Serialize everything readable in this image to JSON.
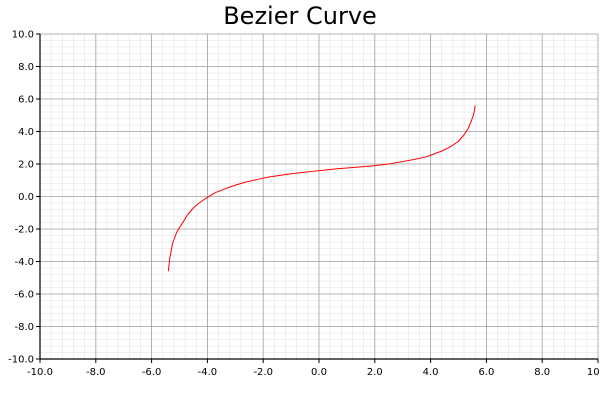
{
  "chart_data": {
    "type": "line",
    "title": "Bezier Curve",
    "xlabel": "",
    "ylabel": "",
    "xlim": [
      -10,
      10
    ],
    "ylim": [
      -10,
      10
    ],
    "xticks": [
      -10,
      -8,
      -6,
      -4,
      -2,
      0,
      2,
      4,
      6,
      8,
      10
    ],
    "yticks": [
      -10,
      -8,
      -6,
      -4,
      -2,
      0,
      2,
      4,
      6,
      8,
      10
    ],
    "tick_format_decimals": 1,
    "grid": {
      "major": true,
      "minor": true,
      "minor_step": 0.4
    },
    "colors": {
      "line": "#ff0000",
      "major_grid": "#a0a0a0",
      "minor_grid": "#e2e2e2",
      "axis": "#000000"
    },
    "series": [
      {
        "x": [
          -5.4,
          -5.35,
          -5.25,
          -5.1,
          -4.9,
          -4.7,
          -4.5,
          -4.3,
          -4.0,
          -3.7,
          -3.4,
          -3.0,
          -2.6,
          -2.2,
          -1.8,
          -1.4,
          -1.0,
          -0.6,
          -0.2,
          0.2,
          0.6,
          1.0,
          1.5,
          2.0,
          2.5,
          3.0,
          3.4,
          3.8,
          4.1,
          4.4,
          4.7,
          5.0,
          5.2,
          5.35,
          5.45,
          5.55,
          5.6
        ],
        "y": [
          -4.6,
          -3.8,
          -2.9,
          -2.2,
          -1.65,
          -1.1,
          -0.7,
          -0.4,
          -0.05,
          0.25,
          0.45,
          0.7,
          0.9,
          1.05,
          1.2,
          1.3,
          1.4,
          1.48,
          1.55,
          1.62,
          1.7,
          1.75,
          1.82,
          1.9,
          2.0,
          2.15,
          2.28,
          2.42,
          2.6,
          2.8,
          3.05,
          3.4,
          3.8,
          4.2,
          4.6,
          5.1,
          5.6
        ]
      }
    ]
  }
}
